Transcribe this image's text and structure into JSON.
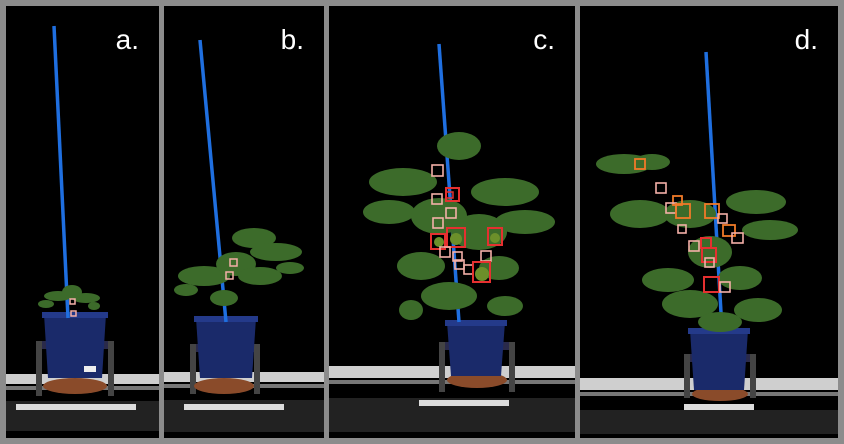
{
  "figure": {
    "panels": [
      {
        "label": "a.",
        "detections": {
          "small": 2,
          "medium": 0,
          "large": 0
        }
      },
      {
        "label": "b.",
        "detections": {
          "small": 2,
          "medium": 0,
          "large": 0
        }
      },
      {
        "label": "c.",
        "detections": {
          "small": 9,
          "medium": 0,
          "large": 6
        }
      },
      {
        "label": "d.",
        "detections": {
          "small": 8,
          "medium": 5,
          "large": 3
        }
      }
    ]
  },
  "colors": {
    "background_border": "#8c8c8c",
    "stake": "#1f6fe0",
    "leaf": "#3c6b2a",
    "pot": "#1a2a6a",
    "box_small": "#f4b0a8",
    "box_medium": "#f07a28",
    "box_large": "#e53030"
  }
}
